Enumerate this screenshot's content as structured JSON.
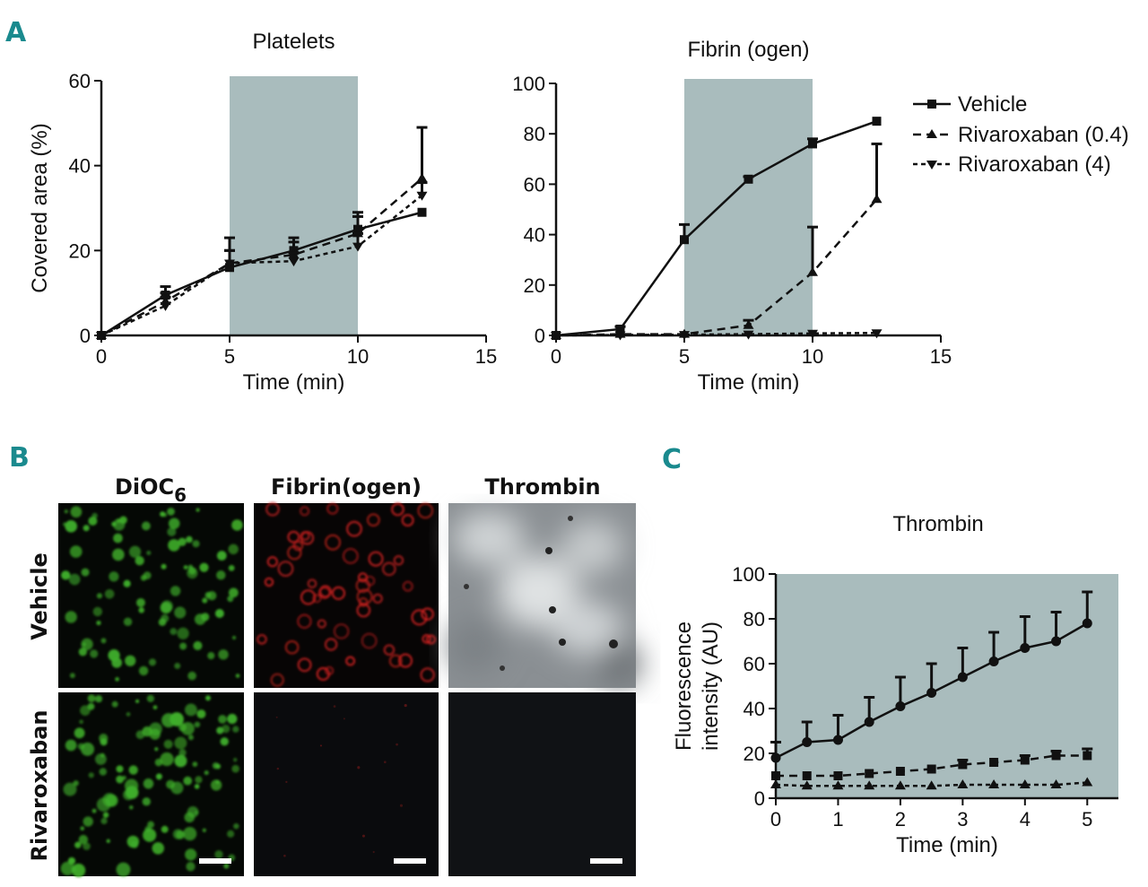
{
  "panels": {
    "A": "A",
    "B": "B",
    "C": "C"
  },
  "colors": {
    "shade": "#a9bcbd",
    "line": "#111111",
    "green": "#3fae2a",
    "red": "#c8201e",
    "dark": "#0d0f11"
  },
  "chart_data": [
    {
      "id": "A-platelets",
      "type": "line",
      "title": "Platelets",
      "xlabel": "Time (min)",
      "ylabel": "Covered area (%)",
      "xlim": [
        0,
        15
      ],
      "ylim": [
        0,
        60
      ],
      "xticks": [
        "0",
        "5",
        "10",
        "15"
      ],
      "yticks": [
        "0",
        "20",
        "40",
        "60"
      ],
      "shaded": [
        5,
        10
      ],
      "series": [
        {
          "name": "Vehicle",
          "style": "solid",
          "marker": "square",
          "x": [
            0,
            2.5,
            5,
            7.5,
            10,
            12.5
          ],
          "y": [
            0,
            9.5,
            16,
            20,
            25,
            29
          ],
          "err": [
            0,
            2,
            4,
            3,
            4,
            0
          ]
        },
        {
          "name": "Rivaroxaban (0.4)",
          "style": "dash",
          "marker": "triangle-up",
          "x": [
            0,
            2.5,
            5,
            7.5,
            10,
            12.5
          ],
          "y": [
            0,
            8,
            17,
            19,
            24,
            37
          ],
          "err": [
            0,
            2,
            6,
            3,
            4,
            12
          ]
        },
        {
          "name": "Rivaroxaban (4)",
          "style": "dot",
          "marker": "triangle-down",
          "x": [
            0,
            2.5,
            5,
            7.5,
            10,
            12.5
          ],
          "y": [
            0,
            7,
            17,
            17.5,
            21,
            33
          ],
          "err": [
            0,
            2,
            3,
            2,
            3,
            3
          ]
        }
      ]
    },
    {
      "id": "A-fibrinogen",
      "type": "line",
      "title": "Fibrin (ogen)",
      "xlabel": "Time (min)",
      "ylabel": "",
      "xlim": [
        0,
        15
      ],
      "ylim": [
        0,
        100
      ],
      "xticks": [
        "0",
        "5",
        "10",
        "15"
      ],
      "yticks": [
        "0",
        "20",
        "40",
        "60",
        "80",
        "100"
      ],
      "shaded": [
        5,
        10
      ],
      "series": [
        {
          "name": "Vehicle",
          "style": "solid",
          "marker": "square",
          "x": [
            0,
            2.5,
            5,
            7.5,
            10,
            12.5
          ],
          "y": [
            0,
            2.5,
            38,
            62,
            76,
            85
          ],
          "err": [
            0,
            1,
            6,
            1,
            2,
            0
          ]
        },
        {
          "name": "Rivaroxaban (0.4)",
          "style": "dash",
          "marker": "triangle-up",
          "x": [
            0,
            2.5,
            5,
            7.5,
            10,
            12.5
          ],
          "y": [
            0,
            0.5,
            0.5,
            4,
            25,
            54
          ],
          "err": [
            0,
            0,
            0,
            2,
            18,
            22
          ]
        },
        {
          "name": "Rivaroxaban (4)",
          "style": "dot",
          "marker": "triangle-down",
          "x": [
            0,
            2.5,
            5,
            7.5,
            10,
            12.5
          ],
          "y": [
            0,
            0.2,
            0.3,
            0.5,
            0.8,
            1
          ],
          "err": [
            0,
            0,
            0,
            0,
            0,
            0
          ]
        }
      ],
      "legend": [
        "Vehicle",
        "Rivaroxaban (0.4)",
        "Rivaroxaban (4)"
      ]
    },
    {
      "id": "C-thrombin",
      "type": "line",
      "title": "Thrombin",
      "xlabel": "Time (min)",
      "ylabel": [
        "Fluorescence",
        "intensity (AU)"
      ],
      "xlim": [
        0,
        5.5
      ],
      "ylim": [
        0,
        100
      ],
      "xticks": [
        "0",
        "1",
        "2",
        "3",
        "4",
        "5"
      ],
      "yticks": [
        "0",
        "20",
        "40",
        "60",
        "80",
        "100"
      ],
      "series": [
        {
          "style": "solid",
          "marker": "circle",
          "x": [
            0,
            0.5,
            1,
            1.5,
            2,
            2.5,
            3,
            3.5,
            4,
            4.5,
            5
          ],
          "y": [
            18,
            25,
            26,
            34,
            41,
            47,
            54,
            61,
            67,
            70,
            78
          ],
          "err": [
            7,
            9,
            11,
            11,
            13,
            13,
            13,
            13,
            14,
            13,
            14
          ]
        },
        {
          "style": "dash",
          "marker": "square",
          "x": [
            0,
            0.5,
            1,
            1.5,
            2,
            2.5,
            3,
            3.5,
            4,
            4.5,
            5
          ],
          "y": [
            10,
            10,
            10,
            11,
            12,
            13,
            15,
            16,
            17,
            19,
            19
          ],
          "err": [
            0,
            0,
            0,
            0,
            0,
            0,
            2,
            0,
            2,
            2,
            3
          ]
        },
        {
          "style": "dot",
          "marker": "triangle-up",
          "x": [
            0,
            0.5,
            1,
            1.5,
            2,
            2.5,
            3,
            3.5,
            4,
            4.5,
            5
          ],
          "y": [
            6,
            5.5,
            5.5,
            5.5,
            5.5,
            5.5,
            6,
            6,
            6,
            6,
            7
          ],
          "err": [
            0,
            0,
            0,
            0,
            0,
            0,
            0,
            0,
            0,
            0,
            0
          ]
        }
      ]
    }
  ],
  "micrographs": {
    "columns": [
      "DiOC",
      "6",
      "Fibrin(ogen)",
      "Thrombin"
    ],
    "rows": [
      "Vehicle",
      "Rivaroxaban"
    ]
  }
}
